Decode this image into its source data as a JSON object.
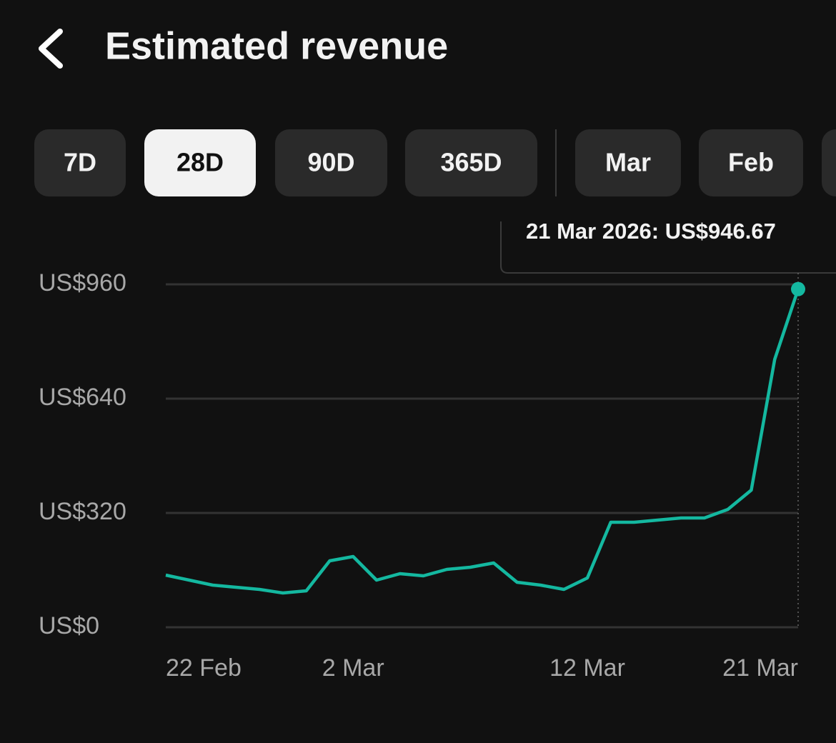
{
  "header": {
    "title": "Estimated revenue"
  },
  "tabs": [
    "7D",
    "28D",
    "90D",
    "365D",
    "Mar",
    "Feb"
  ],
  "selected_tab": "28D",
  "chart_data": {
    "type": "line",
    "tooltip": "21 Mar 2026: US$946.67",
    "categories": [
      "22 Feb",
      null,
      null,
      null,
      null,
      null,
      null,
      null,
      "2 Mar",
      null,
      null,
      null,
      null,
      null,
      null,
      null,
      null,
      null,
      "12 Mar",
      null,
      null,
      null,
      null,
      null,
      null,
      null,
      null,
      "21 Mar"
    ],
    "values": [
      146,
      132,
      118,
      112,
      106,
      96,
      102,
      186,
      198,
      132,
      150,
      144,
      162,
      168,
      180,
      126,
      118,
      106,
      138,
      294,
      294,
      300,
      306,
      306,
      330,
      384,
      750,
      946.67
    ],
    "color": "#14b8a0",
    "ylim": [
      0,
      960
    ],
    "yticks": [
      {
        "value": 0,
        "label": "US$0"
      },
      {
        "value": 320,
        "label": "US$320"
      },
      {
        "value": 640,
        "label": "US$640"
      },
      {
        "value": 960,
        "label": "US$960"
      }
    ],
    "grid": true
  }
}
